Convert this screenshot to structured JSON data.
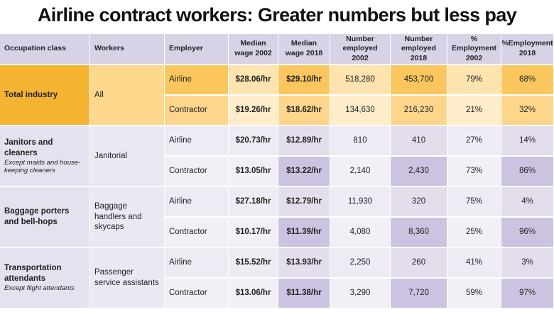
{
  "header": {
    "title": "Airline contract workers: Greater numbers but less pay"
  },
  "table": {
    "columns": [
      "Occupation class",
      "Workers",
      "Employer",
      "Median wage 2002",
      "Median wage 2018",
      "Number employed 2002",
      "Number employed 2018",
      "% Employment 2002",
      "%Employment 2018"
    ],
    "groups": [
      {
        "occupation": "Total industry",
        "workers": "All",
        "rows": [
          [
            "Airline",
            "$28.06/hr",
            "$29.10/hr",
            "518,280",
            "453,700",
            "79%",
            "68%"
          ],
          [
            "Contractor",
            "$19.26/hr",
            "$18.62/hr",
            "134,630",
            "216,230",
            "21%",
            "32%"
          ]
        ]
      },
      {
        "occupation": "Janitors and cleaners",
        "note": "Except maids and house-keeping cleaners",
        "workers": "Janitorial",
        "rows": [
          [
            "Airline",
            "$20.73/hr",
            "$12.89/hr",
            "810",
            "410",
            "27%",
            "14%"
          ],
          [
            "Contractor",
            "$13.05/hr",
            "$13.22/hr",
            "2,140",
            "2,430",
            "73%",
            "86%"
          ]
        ]
      },
      {
        "occupation": "Baggage porters and bell-hops",
        "workers": "Baggage handlers and skycaps",
        "rows": [
          [
            "Airline",
            "$27.18/hr",
            "$12.79/hr",
            "11,930",
            "320",
            "75%",
            "4%"
          ],
          [
            "Contractor",
            "$10.17/hr",
            "$11.39/hr",
            "4,080",
            "8,360",
            "25%",
            "96%"
          ]
        ]
      },
      {
        "occupation": "Transportation attendants",
        "note": "Except flight attendants",
        "workers": "Passenger service assistants",
        "rows": [
          [
            "Airline",
            "$15.52/hr",
            "$13.93/hr",
            "2,250",
            "260",
            "41%",
            "3%"
          ],
          [
            "Contractor",
            "$13.06/hr",
            "$11.38/hr",
            "3,290",
            "7,720",
            "59%",
            "97%"
          ]
        ]
      }
    ]
  }
}
